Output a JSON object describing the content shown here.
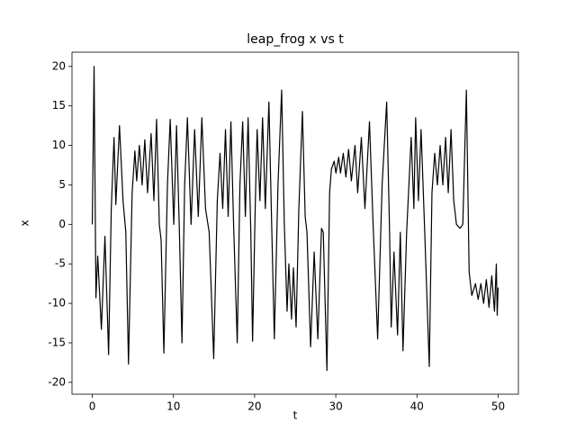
{
  "chart_data": {
    "type": "line",
    "title": "leap_frog x vs t",
    "x_label": "t",
    "y_label": "x",
    "x": [
      0,
      0.22,
      0.45,
      0.67,
      1.12,
      1.56,
      2.01,
      2.34,
      2.68,
      2.9,
      3.35,
      3.79,
      4.13,
      4.46,
      4.91,
      5.25,
      5.47,
      5.8,
      6.14,
      6.47,
      6.81,
      7.25,
      7.59,
      7.92,
      8.26,
      8.48,
      8.82,
      9.26,
      9.6,
      10.04,
      10.38,
      10.71,
      11.05,
      11.38,
      11.72,
      12.17,
      12.61,
      13.06,
      13.5,
      13.95,
      14.4,
      14.96,
      15.4,
      15.74,
      16.07,
      16.41,
      16.74,
      17.08,
      17.41,
      17.86,
      18.19,
      18.53,
      18.86,
      19.2,
      19.53,
      19.75,
      20.09,
      20.31,
      20.65,
      20.98,
      21.32,
      21.76,
      22.1,
      22.43,
      22.88,
      23.33,
      23.66,
      24.0,
      24.22,
      24.55,
      24.78,
      25.11,
      25.45,
      25.89,
      26.23,
      26.45,
      26.9,
      27.34,
      27.79,
      28.24,
      28.46,
      28.91,
      29.24,
      29.46,
      29.8,
      30.02,
      30.36,
      30.58,
      30.92,
      31.25,
      31.58,
      31.92,
      32.37,
      32.7,
      33.15,
      33.59,
      34.15,
      34.6,
      35.16,
      35.71,
      36.27,
      36.61,
      36.83,
      37.17,
      37.61,
      37.95,
      38.28,
      38.73,
      39.29,
      39.62,
      39.84,
      40.18,
      40.51,
      40.96,
      41.52,
      41.85,
      42.19,
      42.52,
      42.86,
      43.19,
      43.53,
      43.86,
      44.2,
      44.53,
      44.87,
      45.31,
      45.65,
      46.09,
      46.43,
      46.76,
      47.21,
      47.54,
      47.88,
      48.21,
      48.55,
      48.88,
      49.22,
      49.55,
      49.78,
      49.89,
      50.0
    ],
    "values": [
      0,
      20,
      -9.3,
      -4,
      -13.3,
      -1.5,
      -16.5,
      2,
      11,
      2.5,
      12.5,
      3,
      -1,
      -17.7,
      4,
      9.3,
      5.5,
      10,
      5,
      10.7,
      4,
      11.5,
      3,
      13.3,
      0,
      -2,
      -16.3,
      5,
      13.3,
      0,
      12.5,
      0,
      -15,
      5,
      13.5,
      0,
      12,
      1,
      13.5,
      2,
      -1,
      -17,
      3,
      9,
      2,
      12,
      1,
      13,
      0,
      -15,
      5,
      13,
      1,
      13.5,
      -1,
      -14.8,
      3,
      12,
      3,
      13.5,
      2,
      15.5,
      0,
      -14.5,
      5,
      17,
      0,
      -11,
      -5,
      -12,
      -5.5,
      -13,
      2,
      14.3,
      1,
      -1,
      -15.5,
      -3.5,
      -14.5,
      -0.5,
      -1,
      -18.5,
      4,
      7,
      8,
      6.5,
      8.5,
      6.5,
      9,
      6,
      9.5,
      5.5,
      10,
      4,
      11,
      2,
      13,
      0,
      -14.5,
      5,
      15.5,
      0,
      -13,
      -3.5,
      -14,
      -1,
      -16,
      -1,
      11,
      2,
      13.5,
      3,
      12,
      -1,
      -18,
      4,
      9,
      5,
      10,
      5,
      11,
      4,
      12,
      3,
      0,
      -0.5,
      0,
      17,
      -6,
      -9,
      -7.5,
      -9.5,
      -7.5,
      -10,
      -7,
      -10.5,
      -6.5,
      -11,
      -5,
      -11.5,
      -8
    ],
    "color": "#000000",
    "xlim": [
      -2.5,
      52.5
    ],
    "ylim": [
      -21.5,
      21.8
    ],
    "xticks": [
      0,
      10,
      20,
      30,
      40,
      50
    ],
    "yticks": [
      -20,
      -15,
      -10,
      -5,
      0,
      5,
      10,
      15,
      20
    ]
  }
}
